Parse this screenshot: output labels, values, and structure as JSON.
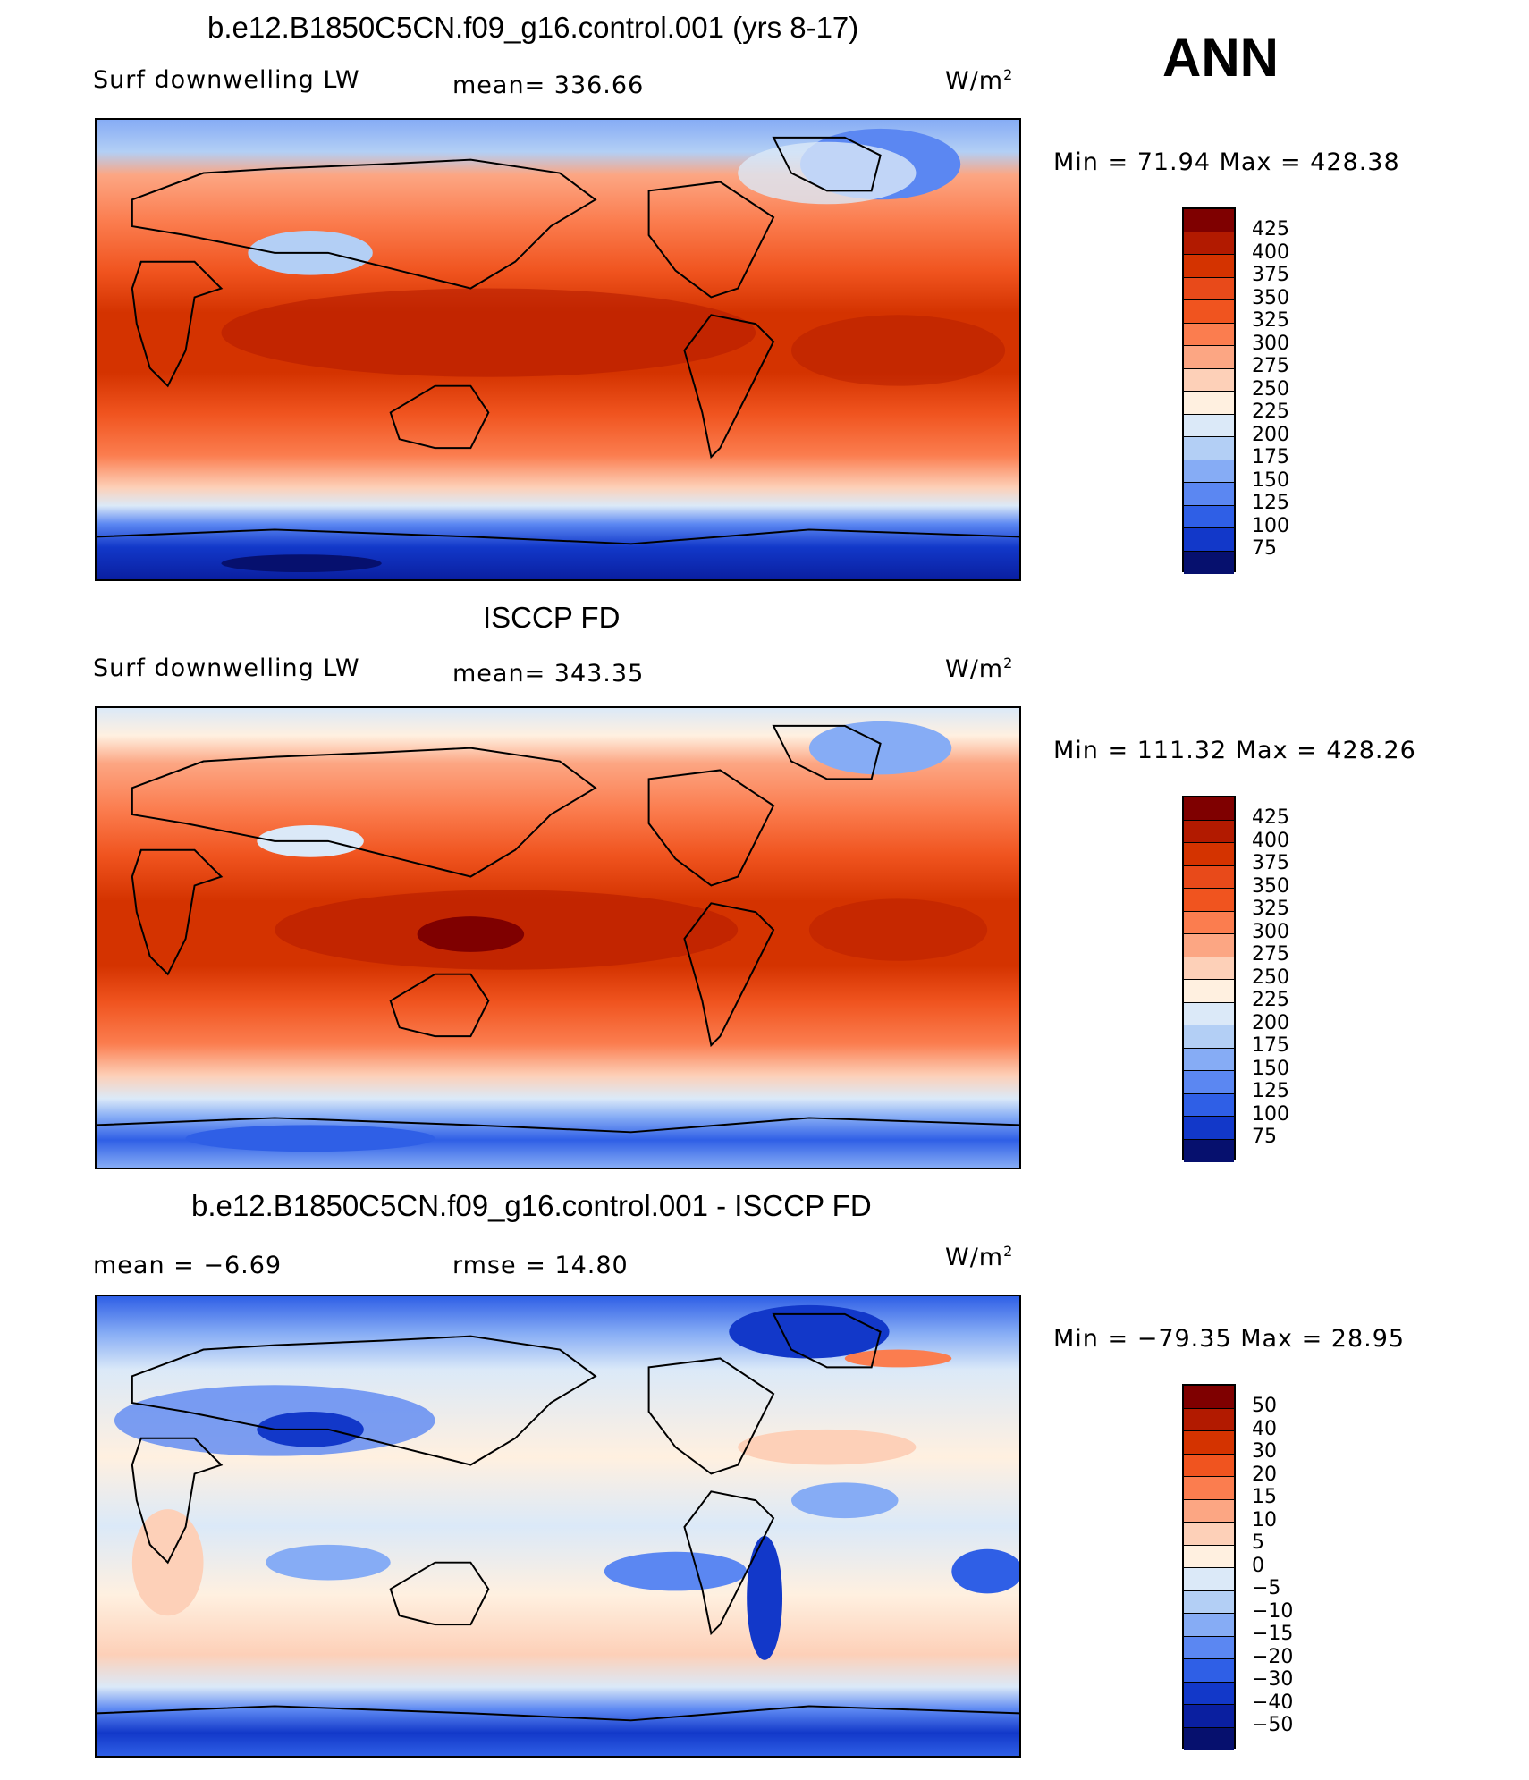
{
  "season": "ANN",
  "panels": [
    {
      "title": "b.e12.B1850C5CN.f09_g16.control.001 (yrs 8-17)",
      "left_label": "Surf  downwelling  LW",
      "mid_label": "mean=  336.66",
      "units": "W/m",
      "units_sup": "2",
      "minmax": "Min  =    71.94  Max  =  428.38",
      "colorbar_labels": [
        "425",
        "400",
        "375",
        "350",
        "325",
        "300",
        "275",
        "250",
        "225",
        "200",
        "175",
        "150",
        "125",
        "100",
        "75"
      ]
    },
    {
      "title": "ISCCP FD",
      "left_label": "Surf  downwelling  LW",
      "mid_label": "mean=  343.35",
      "units": "W/m",
      "units_sup": "2",
      "minmax": "Min  =  111.32  Max  =  428.26",
      "colorbar_labels": [
        "425",
        "400",
        "375",
        "350",
        "325",
        "300",
        "275",
        "250",
        "225",
        "200",
        "175",
        "150",
        "125",
        "100",
        "75"
      ]
    },
    {
      "title": "b.e12.B1850C5CN.f09_g16.control.001 - ISCCP FD",
      "left_label": "mean  =     −6.69",
      "mid_label": "rmse  =     14.80",
      "units": "W/m",
      "units_sup": "2",
      "minmax": "Min  =  −79.35  Max  =     28.95",
      "colorbar_labels": [
        "50",
        "40",
        "30",
        "20",
        "15",
        "10",
        "5",
        "0",
        "−5",
        "−10",
        "−15",
        "−20",
        "−30",
        "−40",
        "−50"
      ]
    }
  ],
  "colors": {
    "abs_scale": [
      "#7f0000",
      "#b21a00",
      "#d43300",
      "#f0541f",
      "#fb7d4f",
      "#fca683",
      "#fdd0b8",
      "#fff0e0",
      "#dbe9f8",
      "#b3cff5",
      "#86acf5",
      "#5b87f2",
      "#2f5fe6",
      "#1238c9",
      "#0a1fa0",
      "#06106e"
    ],
    "diff_scale": [
      "#7f0000",
      "#b21a00",
      "#d43300",
      "#f0541f",
      "#fb7d4f",
      "#fca683",
      "#fdd0b8",
      "#fff0e0",
      "#dbe9f8",
      "#b3cff5",
      "#86acf5",
      "#5b87f2",
      "#2f5fe6",
      "#1238c9",
      "#0a1fa0",
      "#06106e"
    ]
  }
}
